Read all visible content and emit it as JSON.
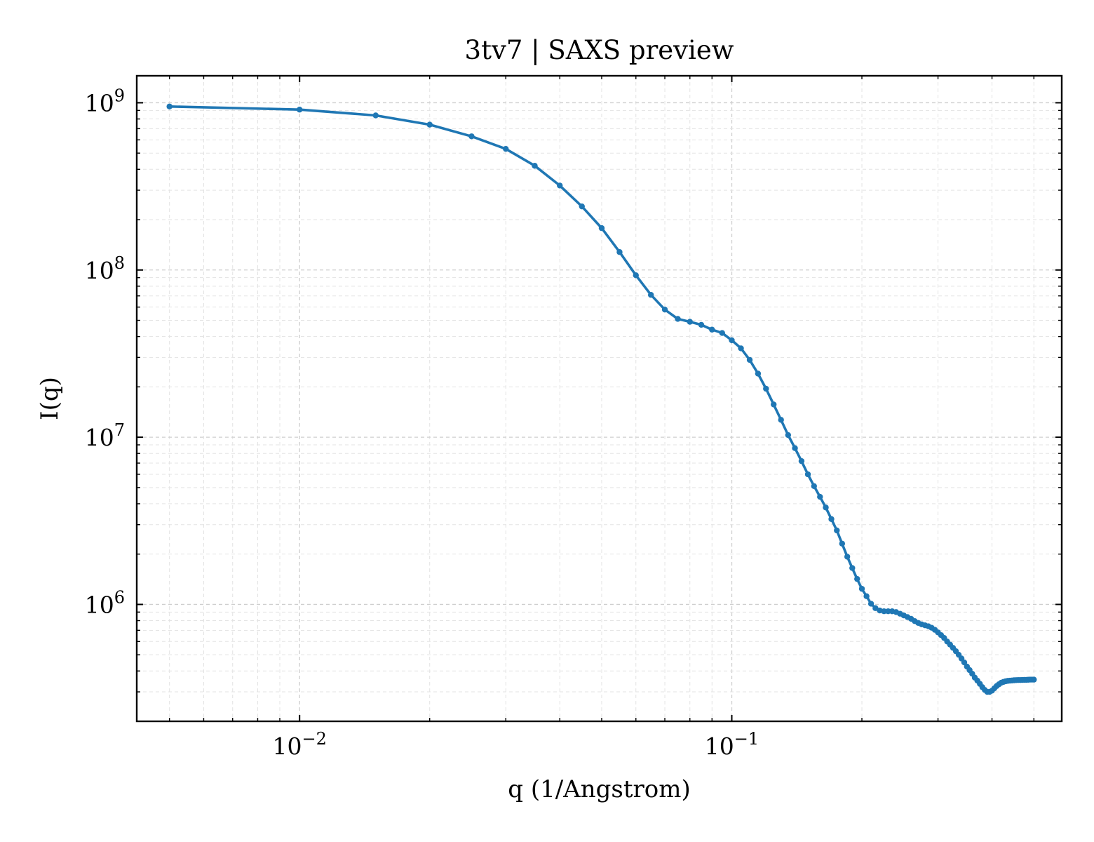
{
  "chart_data": {
    "type": "line",
    "title": "3tv7 | SAXS preview",
    "xlabel": "q (1/Angstrom)",
    "ylabel": "I(q)",
    "xscale": "log",
    "yscale": "log",
    "xlim": [
      0.0042,
      0.58
    ],
    "ylim": [
      200000,
      1450000000
    ],
    "grid": true,
    "legend": "none",
    "x_ticks": [
      {
        "value": 0.01,
        "base": "10",
        "exp": "−2"
      },
      {
        "value": 0.1,
        "base": "10",
        "exp": "−1"
      }
    ],
    "y_ticks": [
      {
        "value": 1000000,
        "base": "10",
        "exp": "6"
      },
      {
        "value": 10000000,
        "base": "10",
        "exp": "7"
      },
      {
        "value": 100000000,
        "base": "10",
        "exp": "8"
      },
      {
        "value": 1000000000,
        "base": "10",
        "exp": "9"
      }
    ],
    "series": [
      {
        "color": "#1f77b4",
        "x": [
          0.005,
          0.01,
          0.015,
          0.02,
          0.025,
          0.03,
          0.035,
          0.04,
          0.045,
          0.05,
          0.055,
          0.06,
          0.065,
          0.07,
          0.075,
          0.08,
          0.085,
          0.09,
          0.095,
          0.1,
          0.105,
          0.11,
          0.115,
          0.12,
          0.125,
          0.13,
          0.135,
          0.14,
          0.145,
          0.15,
          0.155,
          0.16,
          0.165,
          0.17,
          0.175,
          0.18,
          0.185,
          0.19,
          0.195,
          0.2,
          0.205,
          0.21,
          0.215,
          0.22,
          0.225,
          0.23,
          0.235,
          0.24,
          0.245,
          0.25,
          0.255,
          0.26,
          0.265,
          0.27,
          0.275,
          0.28,
          0.285,
          0.29,
          0.295,
          0.3,
          0.305,
          0.31,
          0.315,
          0.32,
          0.325,
          0.33,
          0.335,
          0.34,
          0.345,
          0.35,
          0.355,
          0.36,
          0.365,
          0.37,
          0.375,
          0.38,
          0.385,
          0.39,
          0.395,
          0.4,
          0.405,
          0.41,
          0.415,
          0.42,
          0.425,
          0.43,
          0.435,
          0.44,
          0.445,
          0.45,
          0.455,
          0.46,
          0.465,
          0.47,
          0.475,
          0.48,
          0.485,
          0.49,
          0.495,
          0.5
        ],
        "y": [
          950000000,
          910000000,
          840000000,
          740000000,
          630000000,
          530000000,
          420000000,
          320000000,
          240000000,
          178000000,
          128000000,
          93000000,
          71000000,
          58000000,
          51000000,
          49000000,
          47000000,
          44000000,
          42000000,
          38000000,
          34000000,
          29000000,
          24000000,
          19500000,
          15700000,
          12700000,
          10300000,
          8600000,
          7200000,
          6000000,
          5100000,
          4400000,
          3800000,
          3240000,
          2770000,
          2310000,
          1930000,
          1650000,
          1420000,
          1240000,
          1120000,
          1010000,
          950000,
          920000,
          910000,
          910000,
          910000,
          900000,
          880000,
          860000,
          840000,
          820000,
          795000,
          775000,
          760000,
          750000,
          740000,
          725000,
          705000,
          680000,
          655000,
          630000,
          600000,
          575000,
          550000,
          525000,
          500000,
          475000,
          450000,
          425000,
          405000,
          385000,
          365000,
          350000,
          335000,
          320000,
          308000,
          300000,
          300000,
          305000,
          315000,
          325000,
          333000,
          340000,
          344000,
          347000,
          349000,
          350000,
          351000,
          352000,
          352500,
          353000,
          353000,
          353500,
          354000,
          354000,
          354500,
          355000,
          355000,
          355000
        ]
      }
    ]
  }
}
